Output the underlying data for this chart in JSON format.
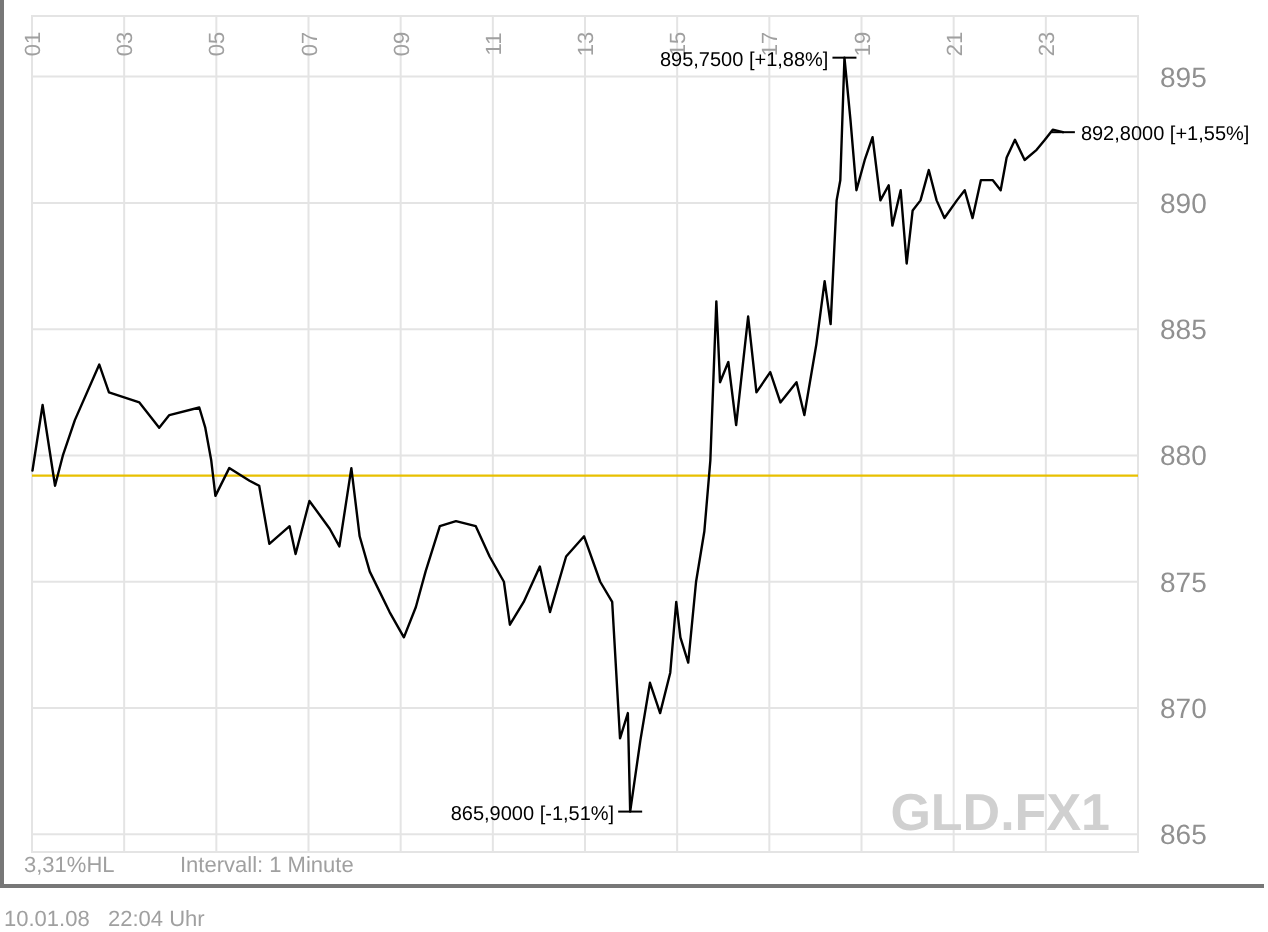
{
  "chart_data": {
    "type": "line",
    "x": [
      1.01,
      1.23,
      1.5,
      1.67,
      1.93,
      2.46,
      2.67,
      3.33,
      3.76,
      3.98,
      4.63,
      4.76,
      4.89,
      4.98,
      5.28,
      5.72,
      5.93,
      6.15,
      6.59,
      6.72,
      7.02,
      7.46,
      7.67,
      7.93,
      8.11,
      8.33,
      8.76,
      9.07,
      9.33,
      9.54,
      9.85,
      10.2,
      10.63,
      10.93,
      11.24,
      11.37,
      11.67,
      12.02,
      12.24,
      12.59,
      12.98,
      13.33,
      13.59,
      13.76,
      13.93,
      13.98,
      14.2,
      14.41,
      14.63,
      14.85,
      14.98,
      15.07,
      15.24,
      15.41,
      15.59,
      15.72,
      15.85,
      15.93,
      16.11,
      16.28,
      16.54,
      16.72,
      17.02,
      17.24,
      17.59,
      17.76,
      18.02,
      18.2,
      18.33,
      18.46,
      18.54,
      18.63,
      18.76,
      18.89,
      19.07,
      19.24,
      19.41,
      19.59,
      19.67,
      19.85,
      19.98,
      20.11,
      20.28,
      20.46,
      20.63,
      20.8,
      21.07,
      21.24,
      21.41,
      21.59,
      21.85,
      22.02,
      22.15,
      22.33,
      22.54,
      22.8,
      22.98,
      23.15,
      23.37
    ],
    "series": [
      {
        "color": "#000000",
        "values": [
          879.4,
          882.0,
          878.8,
          880.0,
          881.4,
          883.6,
          882.5,
          882.1,
          881.1,
          881.6,
          881.9,
          881.1,
          879.8,
          878.4,
          879.5,
          879.0,
          878.8,
          876.5,
          877.2,
          876.1,
          878.2,
          877.1,
          876.4,
          879.5,
          876.8,
          875.4,
          873.8,
          872.8,
          874.0,
          875.4,
          877.2,
          877.4,
          877.2,
          876.0,
          875.0,
          873.3,
          874.2,
          875.6,
          873.8,
          876.0,
          876.8,
          875.0,
          874.2,
          868.8,
          869.8,
          865.9,
          868.7,
          871.0,
          869.8,
          871.4,
          874.2,
          872.8,
          871.8,
          875.0,
          877.0,
          879.8,
          886.1,
          882.9,
          883.7,
          881.2,
          885.5,
          882.5,
          883.3,
          882.1,
          882.9,
          881.6,
          884.4,
          886.9,
          885.2,
          890.1,
          890.9,
          895.75,
          893.3,
          890.5,
          891.7,
          892.6,
          890.1,
          890.7,
          889.1,
          890.5,
          887.6,
          889.7,
          890.1,
          891.3,
          890.1,
          889.4,
          890.1,
          890.5,
          889.4,
          890.9,
          890.9,
          890.5,
          891.8,
          892.5,
          891.7,
          892.1,
          892.5,
          892.9,
          892.8
        ]
      }
    ],
    "xlim": [
      1,
      25
    ],
    "xticks": [
      {
        "value": 1,
        "label": "01"
      },
      {
        "value": 3,
        "label": "03"
      },
      {
        "value": 5,
        "label": "05"
      },
      {
        "value": 7,
        "label": "07"
      },
      {
        "value": 9,
        "label": "09"
      },
      {
        "value": 11,
        "label": "11"
      },
      {
        "value": 13,
        "label": "13"
      },
      {
        "value": 15,
        "label": "15"
      },
      {
        "value": 17,
        "label": "17"
      },
      {
        "value": 19,
        "label": "19"
      },
      {
        "value": 21,
        "label": "21"
      },
      {
        "value": 23,
        "label": "23"
      }
    ],
    "ylim": [
      864.3,
      897.4
    ],
    "yticks": [
      865,
      870,
      875,
      880,
      885,
      890,
      895
    ],
    "grid": true,
    "marker": "none",
    "line_style": "solid",
    "ref_lines": [
      {
        "axis": "y",
        "value": 879.2,
        "color": "#e8c000"
      }
    ],
    "annotations": [
      {
        "text": "895,7500 [+1,88%]",
        "x": 18.63,
        "y": 895.75
      },
      {
        "text": "865,9000 [-1,51%]",
        "x": 13.98,
        "y": 865.9
      },
      {
        "text": "892,8000 [+1,55%]",
        "x": 23.37,
        "y": 892.8
      },
      "3,31%HL",
      "Intervall: 1 Minute",
      "10.01.08   22:04 Uhr",
      "GLD.FX1"
    ]
  }
}
